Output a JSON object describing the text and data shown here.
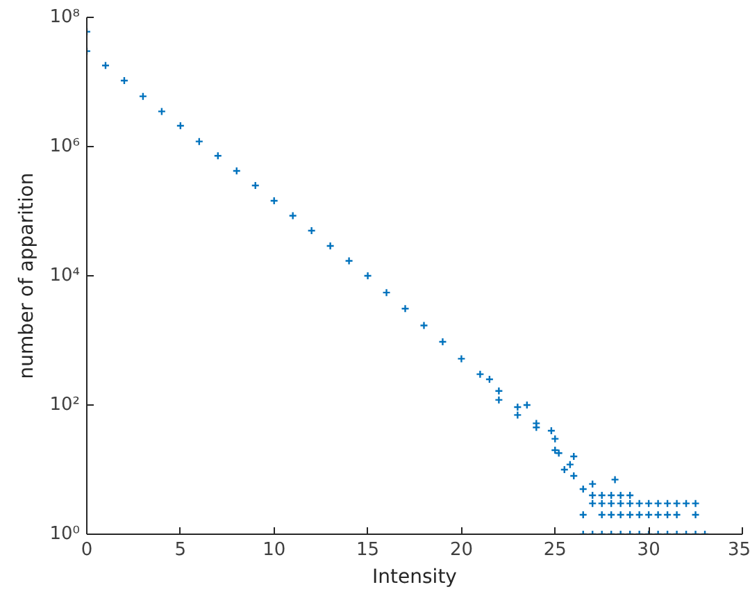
{
  "chart_data": {
    "type": "scatter",
    "xlabel": "Intensity",
    "ylabel": "number of apparition",
    "log": "y",
    "marker": "cross",
    "grid": false,
    "xlim": [
      0,
      35
    ],
    "xticks": [
      0,
      5,
      10,
      15,
      20,
      25,
      30,
      35
    ],
    "ylim": [
      1,
      100000000
    ],
    "yticks": [
      {
        "value": 1,
        "label": "10⁰"
      },
      {
        "value": 100,
        "label": "10²"
      },
      {
        "value": 10000,
        "label": "10⁴"
      },
      {
        "value": 1000000,
        "label": "10⁶"
      },
      {
        "value": 100000000,
        "label": "10⁸"
      }
    ],
    "series": [
      {
        "color": "#0072bd",
        "x": [
          0,
          0,
          1,
          2,
          3,
          4,
          5,
          6,
          7,
          8,
          9,
          10,
          11,
          12,
          13,
          14,
          15,
          16,
          17,
          18,
          19,
          20,
          21,
          22,
          23,
          24,
          25,
          26,
          21.5,
          22,
          23,
          23.5,
          24,
          24.8,
          25,
          25.2,
          25.5,
          25.8,
          26,
          26.5,
          26.5,
          27,
          27.5,
          28,
          28.5,
          29,
          29.5,
          30,
          30.5,
          31,
          31.5,
          32,
          32.5,
          33,
          26.5,
          27.5,
          28,
          28.5,
          29,
          29.5,
          30,
          30.5,
          31,
          31.5,
          32.5,
          27,
          27.5,
          28,
          28.5,
          29,
          29.5,
          30,
          30.5,
          31,
          31.5,
          32,
          32.5,
          27,
          27.5,
          28,
          28.5,
          29,
          27,
          28.2
        ],
        "values": [
          30000000,
          60000000,
          18000000,
          10500000,
          6000000,
          3500000,
          2100000,
          1200000,
          720000,
          420000,
          250000,
          145000,
          85000,
          50000,
          29000,
          17000,
          10000,
          5500,
          3100,
          1700,
          950,
          520,
          300,
          165,
          93,
          52,
          30,
          16,
          250,
          120,
          70,
          100,
          45,
          40,
          20,
          18,
          10,
          12,
          8,
          5,
          1,
          1,
          1,
          1,
          1,
          1,
          1,
          1,
          1,
          1,
          1,
          1,
          1,
          1,
          2,
          2,
          2,
          2,
          2,
          2,
          2,
          2,
          2,
          2,
          2,
          3,
          3,
          3,
          3,
          3,
          3,
          3,
          3,
          3,
          3,
          3,
          3,
          4,
          4,
          4,
          4,
          4,
          6,
          7
        ]
      }
    ]
  }
}
